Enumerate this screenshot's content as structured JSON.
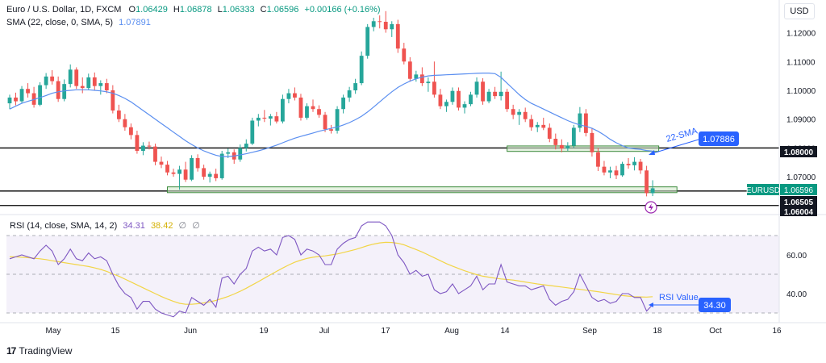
{
  "header": {
    "symbol": "Euro / U.S. Dollar, 1D, FXCM",
    "o_label": "O",
    "o_value": "1.06429",
    "h_label": "H",
    "h_value": "1.06878",
    "l_label": "L",
    "l_value": "1.06333",
    "c_label": "C",
    "c_value": "1.06596",
    "change": "+0.00166 (+0.16%)",
    "sma_label": "SMA (22, close, 0, SMA, 5)",
    "sma_value": "1.07891"
  },
  "currency": "USD",
  "rsi_header": {
    "label": "RSI (14, close, SMA, 14, 2)",
    "rsi_value": "34.31",
    "rsi_sma_value": "38.42",
    "extra1": "∅",
    "extra2": "∅"
  },
  "annotations": {
    "sma_text": "22-SMA",
    "sma_box": "1.07886",
    "rsi_text": "RSI Value",
    "rsi_box": "34.30"
  },
  "price_badges": {
    "level_108": "1.08000",
    "eurusd_label": "EURUSD",
    "eurusd_price": "1.06596",
    "level_10650": "1.06505",
    "level_10600": "1.06004"
  },
  "logo": {
    "text": "TradingView"
  },
  "colors": {
    "up": "#26a69a",
    "down": "#ef5350",
    "sma": "#5b8ff0",
    "rsi": "#7e57c2",
    "rsi_sma": "#f2d547",
    "zone_fill": "#cfe8c8",
    "zone_stroke": "#3d8b3d",
    "badge_dark": "#131722",
    "badge_blue": "#2962ff",
    "badge_teal": "#089981"
  },
  "chart_data": [
    {
      "type": "candlestick",
      "series_name": "EURUSD",
      "x_tick_labels": [
        "May",
        "15",
        "Jun",
        "19",
        "Jul",
        "17",
        "Aug",
        "14",
        "Sep",
        "18",
        "Oct",
        "16"
      ],
      "y_tick_labels": [
        "1.12000",
        "1.11000",
        "1.10000",
        "1.09000",
        "1.08000",
        "1.07000",
        "1.06000"
      ],
      "ylim": [
        1.058,
        1.128
      ],
      "horizontal_levels": [
        1.08,
        1.06505,
        1.06004
      ],
      "zones": [
        {
          "from_bar": 82,
          "to_bar": 107,
          "low": 1.0788,
          "high": 1.0807
        },
        {
          "from_bar": 26,
          "to_bar": 110,
          "low": 1.0645,
          "high": 1.0665
        }
      ],
      "candles": [
        {
          "o": 1.0955,
          "h": 1.0985,
          "l": 1.0935,
          "c": 1.0975
        },
        {
          "o": 1.0975,
          "h": 1.0992,
          "l": 1.0948,
          "c": 1.0962
        },
        {
          "o": 1.0962,
          "h": 1.1015,
          "l": 1.0955,
          "c": 1.1005
        },
        {
          "o": 1.1005,
          "h": 1.1025,
          "l": 1.0975,
          "c": 1.099
        },
        {
          "o": 1.099,
          "h": 1.1012,
          "l": 1.094,
          "c": 1.095
        },
        {
          "o": 1.095,
          "h": 1.1028,
          "l": 1.0945,
          "c": 1.1018
        },
        {
          "o": 1.1018,
          "h": 1.106,
          "l": 1.1005,
          "c": 1.1048
        },
        {
          "o": 1.1048,
          "h": 1.107,
          "l": 1.102,
          "c": 1.1032
        },
        {
          "o": 1.1032,
          "h": 1.1048,
          "l": 1.096,
          "c": 1.097
        },
        {
          "o": 1.097,
          "h": 1.1038,
          "l": 1.0962,
          "c": 1.1022
        },
        {
          "o": 1.1022,
          "h": 1.109,
          "l": 1.101,
          "c": 1.1072
        },
        {
          "o": 1.1072,
          "h": 1.108,
          "l": 1.1005,
          "c": 1.1015
        },
        {
          "o": 1.1015,
          "h": 1.1045,
          "l": 1.099,
          "c": 1.1008
        },
        {
          "o": 1.1008,
          "h": 1.1058,
          "l": 1.1,
          "c": 1.1045
        },
        {
          "o": 1.1045,
          "h": 1.1062,
          "l": 1.1,
          "c": 1.1015
        },
        {
          "o": 1.1015,
          "h": 1.1035,
          "l": 1.0985,
          "c": 1.1025
        },
        {
          "o": 1.1025,
          "h": 1.104,
          "l": 1.099,
          "c": 1.1
        },
        {
          "o": 1.1,
          "h": 1.1018,
          "l": 1.092,
          "c": 1.093
        },
        {
          "o": 1.093,
          "h": 1.095,
          "l": 1.089,
          "c": 1.09
        },
        {
          "o": 1.09,
          "h": 1.0918,
          "l": 1.086,
          "c": 1.0872
        },
        {
          "o": 1.0872,
          "h": 1.0885,
          "l": 1.083,
          "c": 1.0845
        },
        {
          "o": 1.0845,
          "h": 1.086,
          "l": 1.078,
          "c": 1.079
        },
        {
          "o": 1.079,
          "h": 1.082,
          "l": 1.0775,
          "c": 1.0808
        },
        {
          "o": 1.0808,
          "h": 1.0822,
          "l": 1.0795,
          "c": 1.0805
        },
        {
          "o": 1.0805,
          "h": 1.0815,
          "l": 1.074,
          "c": 1.0752
        },
        {
          "o": 1.0752,
          "h": 1.077,
          "l": 1.073,
          "c": 1.0742
        },
        {
          "o": 1.0742,
          "h": 1.0755,
          "l": 1.0705,
          "c": 1.0715
        },
        {
          "o": 1.0715,
          "h": 1.0728,
          "l": 1.07,
          "c": 1.071
        },
        {
          "o": 1.071,
          "h": 1.0738,
          "l": 1.0655,
          "c": 1.0725
        },
        {
          "o": 1.0725,
          "h": 1.0752,
          "l": 1.0682,
          "c": 1.069
        },
        {
          "o": 1.069,
          "h": 1.0775,
          "l": 1.0685,
          "c": 1.0765
        },
        {
          "o": 1.0765,
          "h": 1.0778,
          "l": 1.0718,
          "c": 1.073
        },
        {
          "o": 1.073,
          "h": 1.0742,
          "l": 1.069,
          "c": 1.07
        },
        {
          "o": 1.07,
          "h": 1.0718,
          "l": 1.068,
          "c": 1.071
        },
        {
          "o": 1.071,
          "h": 1.0728,
          "l": 1.0685,
          "c": 1.0695
        },
        {
          "o": 1.0695,
          "h": 1.079,
          "l": 1.069,
          "c": 1.078
        },
        {
          "o": 1.078,
          "h": 1.0798,
          "l": 1.0765,
          "c": 1.0785
        },
        {
          "o": 1.0785,
          "h": 1.0795,
          "l": 1.0745,
          "c": 1.076
        },
        {
          "o": 1.076,
          "h": 1.0812,
          "l": 1.0752,
          "c": 1.08
        },
        {
          "o": 1.08,
          "h": 1.083,
          "l": 1.0788,
          "c": 1.0815
        },
        {
          "o": 1.0815,
          "h": 1.0905,
          "l": 1.081,
          "c": 1.0895
        },
        {
          "o": 1.0895,
          "h": 1.0918,
          "l": 1.0875,
          "c": 1.0905
        },
        {
          "o": 1.0905,
          "h": 1.0932,
          "l": 1.089,
          "c": 1.0902
        },
        {
          "o": 1.0902,
          "h": 1.0918,
          "l": 1.0878,
          "c": 1.091
        },
        {
          "o": 1.091,
          "h": 1.0925,
          "l": 1.0885,
          "c": 1.0892
        },
        {
          "o": 1.0892,
          "h": 1.0985,
          "l": 1.0885,
          "c": 1.097
        },
        {
          "o": 1.097,
          "h": 1.1005,
          "l": 1.0955,
          "c": 1.099
        },
        {
          "o": 1.099,
          "h": 1.101,
          "l": 1.0965,
          "c": 1.0975
        },
        {
          "o": 1.0975,
          "h": 1.0988,
          "l": 1.0895,
          "c": 1.0905
        },
        {
          "o": 1.0905,
          "h": 1.0955,
          "l": 1.0898,
          "c": 1.0945
        },
        {
          "o": 1.0945,
          "h": 1.0968,
          "l": 1.0925,
          "c": 1.0935
        },
        {
          "o": 1.0935,
          "h": 1.0948,
          "l": 1.0905,
          "c": 1.0915
        },
        {
          "o": 1.0915,
          "h": 1.0925,
          "l": 1.0855,
          "c": 1.0865
        },
        {
          "o": 1.0865,
          "h": 1.088,
          "l": 1.085,
          "c": 1.086
        },
        {
          "o": 1.086,
          "h": 1.0945,
          "l": 1.085,
          "c": 1.0935
        },
        {
          "o": 1.0935,
          "h": 1.0985,
          "l": 1.092,
          "c": 1.0975
        },
        {
          "o": 1.0975,
          "h": 1.1012,
          "l": 1.096,
          "c": 1.1
        },
        {
          "o": 1.1,
          "h": 1.104,
          "l": 1.0988,
          "c": 1.1025
        },
        {
          "o": 1.1025,
          "h": 1.1135,
          "l": 1.1018,
          "c": 1.112
        },
        {
          "o": 1.112,
          "h": 1.123,
          "l": 1.111,
          "c": 1.122
        },
        {
          "o": 1.122,
          "h": 1.1252,
          "l": 1.1205,
          "c": 1.124
        },
        {
          "o": 1.124,
          "h": 1.126,
          "l": 1.1215,
          "c": 1.1238
        },
        {
          "o": 1.1238,
          "h": 1.1275,
          "l": 1.12,
          "c": 1.1212
        },
        {
          "o": 1.1212,
          "h": 1.124,
          "l": 1.1185,
          "c": 1.123
        },
        {
          "o": 1.123,
          "h": 1.1245,
          "l": 1.113,
          "c": 1.1145
        },
        {
          "o": 1.1145,
          "h": 1.1165,
          "l": 1.109,
          "c": 1.11
        },
        {
          "o": 1.11,
          "h": 1.1115,
          "l": 1.103,
          "c": 1.104
        },
        {
          "o": 1.104,
          "h": 1.1068,
          "l": 1.103,
          "c": 1.1055
        },
        {
          "o": 1.1055,
          "h": 1.108,
          "l": 1.1015,
          "c": 1.1025
        },
        {
          "o": 1.1025,
          "h": 1.1045,
          "l": 1.0995,
          "c": 1.103
        },
        {
          "o": 1.103,
          "h": 1.11,
          "l": 1.0975,
          "c": 1.0985
        },
        {
          "o": 1.0985,
          "h": 1.1005,
          "l": 1.0935,
          "c": 1.0945
        },
        {
          "o": 1.0945,
          "h": 1.0968,
          "l": 1.0925,
          "c": 1.096
        },
        {
          "o": 1.096,
          "h": 1.101,
          "l": 1.095,
          "c": 1.0998
        },
        {
          "o": 1.0998,
          "h": 1.101,
          "l": 1.093,
          "c": 1.094
        },
        {
          "o": 1.094,
          "h": 1.0962,
          "l": 1.092,
          "c": 1.0952
        },
        {
          "o": 1.0952,
          "h": 1.0995,
          "l": 1.0945,
          "c": 1.0985
        },
        {
          "o": 1.0985,
          "h": 1.1045,
          "l": 1.0975,
          "c": 1.103
        },
        {
          "o": 1.103,
          "h": 1.1042,
          "l": 1.095,
          "c": 1.0962
        },
        {
          "o": 1.0962,
          "h": 1.1005,
          "l": 1.0955,
          "c": 1.0995
        },
        {
          "o": 1.0995,
          "h": 1.1012,
          "l": 1.097,
          "c": 1.098
        },
        {
          "o": 1.098,
          "h": 1.1065,
          "l": 1.0965,
          "c": 1.0995
        },
        {
          "o": 1.0995,
          "h": 1.1005,
          "l": 1.0925,
          "c": 1.0935
        },
        {
          "o": 1.0935,
          "h": 1.095,
          "l": 1.09,
          "c": 1.0915
        },
        {
          "o": 1.0915,
          "h": 1.0935,
          "l": 1.088,
          "c": 1.0925
        },
        {
          "o": 1.0925,
          "h": 1.094,
          "l": 1.089,
          "c": 1.09
        },
        {
          "o": 1.09,
          "h": 1.0915,
          "l": 1.086,
          "c": 1.0872
        },
        {
          "o": 1.0872,
          "h": 1.089,
          "l": 1.0855,
          "c": 1.088
        },
        {
          "o": 1.088,
          "h": 1.0905,
          "l": 1.0862,
          "c": 1.087
        },
        {
          "o": 1.087,
          "h": 1.0885,
          "l": 1.082,
          "c": 1.0832
        },
        {
          "o": 1.0832,
          "h": 1.085,
          "l": 1.0795,
          "c": 1.081
        },
        {
          "o": 1.081,
          "h": 1.083,
          "l": 1.0785,
          "c": 1.0798
        },
        {
          "o": 1.0798,
          "h": 1.082,
          "l": 1.079,
          "c": 1.0808
        },
        {
          "o": 1.0808,
          "h": 1.088,
          "l": 1.08,
          "c": 1.087
        },
        {
          "o": 1.087,
          "h": 1.0942,
          "l": 1.0855,
          "c": 1.092
        },
        {
          "o": 1.092,
          "h": 1.0935,
          "l": 1.084,
          "c": 1.0852
        },
        {
          "o": 1.0852,
          "h": 1.087,
          "l": 1.077,
          "c": 1.0785
        },
        {
          "o": 1.0785,
          "h": 1.08,
          "l": 1.072,
          "c": 1.0735
        },
        {
          "o": 1.0735,
          "h": 1.0755,
          "l": 1.0705,
          "c": 1.0715
        },
        {
          "o": 1.0715,
          "h": 1.0735,
          "l": 1.0695,
          "c": 1.0722
        },
        {
          "o": 1.0722,
          "h": 1.0738,
          "l": 1.0692,
          "c": 1.0705
        },
        {
          "o": 1.0705,
          "h": 1.0752,
          "l": 1.07,
          "c": 1.0745
        },
        {
          "o": 1.0745,
          "h": 1.0765,
          "l": 1.0728,
          "c": 1.074
        },
        {
          "o": 1.074,
          "h": 1.0768,
          "l": 1.0722,
          "c": 1.0752
        },
        {
          "o": 1.0752,
          "h": 1.0762,
          "l": 1.071,
          "c": 1.0722
        },
        {
          "o": 1.0722,
          "h": 1.0738,
          "l": 1.0632,
          "c": 1.0643
        },
        {
          "o": 1.0643,
          "h": 1.0688,
          "l": 1.0633,
          "c": 1.066
        }
      ],
      "sma": [
        1.0935,
        1.0945,
        1.0955,
        1.0962,
        1.0968,
        1.0975,
        1.0982,
        1.099,
        1.0995,
        1.0998,
        1.1,
        1.1002,
        1.1002,
        1.1002,
        1.1,
        1.0998,
        1.0995,
        1.099,
        1.0982,
        1.0972,
        1.096,
        1.0945,
        1.093,
        1.0915,
        1.09,
        1.0885,
        1.087,
        1.0855,
        1.084,
        1.0825,
        1.0812,
        1.08,
        1.079,
        1.0782,
        1.0775,
        1.077,
        1.077,
        1.0772,
        1.0776,
        1.078,
        1.0785,
        1.079,
        1.0796,
        1.0803,
        1.081,
        1.0818,
        1.0826,
        1.0834,
        1.084,
        1.0846,
        1.0852,
        1.0858,
        1.0863,
        1.0868,
        1.0873,
        1.088,
        1.0888,
        1.0898,
        1.091,
        1.0925,
        1.0942,
        1.096,
        1.0978,
        1.0995,
        1.101,
        1.1022,
        1.1032,
        1.104,
        1.1046,
        1.105,
        1.1052,
        1.1053,
        1.1054,
        1.1055,
        1.1056,
        1.1057,
        1.1058,
        1.1059,
        1.106,
        1.106,
        1.1058,
        1.1045,
        1.1025,
        1.1005,
        1.0985,
        1.0968,
        1.0955,
        1.0945,
        1.0935,
        1.0925,
        1.0915,
        1.0905,
        1.0895,
        1.0887,
        1.088,
        1.0875,
        1.0868,
        1.0858,
        1.0845,
        1.083,
        1.0818,
        1.0808,
        1.08,
        1.0797,
        1.0795,
        1.0791,
        1.0789
      ],
      "sma_label": "22-SMA",
      "sma_label_value": 1.07886
    },
    {
      "type": "line",
      "series_name": "RSI",
      "y_tick_labels": [
        "60.00",
        "40.00"
      ],
      "ylim": [
        22,
        77
      ],
      "band": [
        30,
        70
      ],
      "midline": 50,
      "rsi": [
        58,
        59,
        60,
        59,
        58,
        62,
        65,
        62,
        55,
        58,
        63,
        58,
        57,
        61,
        58,
        59,
        57,
        50,
        44,
        40,
        38,
        32,
        36,
        36,
        32,
        30,
        29,
        28,
        31,
        30,
        38,
        36,
        34,
        37,
        33,
        48,
        49,
        45,
        50,
        53,
        62,
        64,
        62,
        63,
        60,
        69,
        70,
        68,
        60,
        63,
        62,
        60,
        55,
        55,
        63,
        66,
        68,
        69,
        75,
        77,
        77,
        77,
        75,
        70,
        60,
        56,
        50,
        52,
        49,
        50,
        42,
        40,
        41,
        45,
        40,
        42,
        44,
        49,
        42,
        45,
        45,
        55,
        46,
        45,
        44,
        44,
        42,
        43,
        44,
        37,
        34,
        36,
        37,
        41,
        50,
        44,
        38,
        36,
        37,
        35,
        36,
        40,
        40,
        38,
        38,
        31,
        34.3
      ],
      "rsi_sma": [
        59,
        59,
        58.8,
        58.6,
        58.3,
        58,
        57.6,
        57,
        56.5,
        56,
        55.5,
        55,
        54.5,
        54,
        53.3,
        52.5,
        51.5,
        50.2,
        49,
        47.5,
        46,
        44.5,
        43,
        41.5,
        40,
        38.5,
        37.2,
        36,
        35,
        34.5,
        34.5,
        34.8,
        35.2,
        35.8,
        36.5,
        37.5,
        38.5,
        39.8,
        41.2,
        42.8,
        44.5,
        46.2,
        48,
        49.8,
        51.5,
        53.2,
        54.8,
        56.2,
        57.3,
        58.2,
        58.8,
        59.2,
        59.5,
        60,
        60.5,
        61.2,
        62,
        62.8,
        63.8,
        64.8,
        65.6,
        66.2,
        66.5,
        66.4,
        66,
        65.2,
        64,
        62.8,
        61.5,
        60,
        58.5,
        57,
        55.5,
        54.2,
        53,
        51.8,
        50.8,
        49.8,
        49,
        48.5,
        48,
        47.6,
        47.3,
        47,
        46.5,
        46,
        45.5,
        45,
        44.6,
        44.2,
        43.8,
        43.4,
        43,
        42.6,
        42.2,
        41.8,
        41.4,
        41,
        40.5,
        40,
        39.5,
        39,
        38.7,
        38.4,
        38.3,
        38.2,
        38.42
      ],
      "rsi_label": "RSI Value",
      "rsi_label_value": 34.3
    }
  ]
}
